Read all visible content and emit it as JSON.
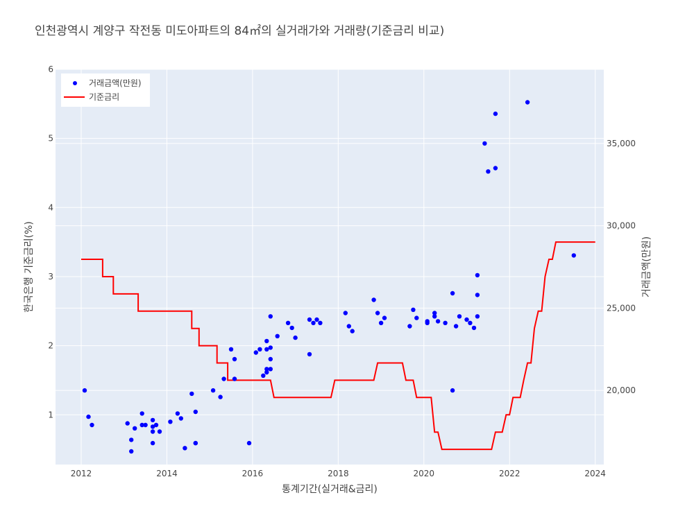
{
  "chart_data": {
    "type": "scatter+line",
    "title": "인천광역시 계양구 작전동 미도아파트의 84㎡의 실거래가와 거래량(기준금리 비교)",
    "xlabel": "통계기간(실거래&금리)",
    "ylabel_left": "한국은행 기준금리(%)",
    "ylabel_right": "거래금액(만원)",
    "xlim": [
      2011.4,
      2024.2
    ],
    "ylim_left": [
      0.28,
      6
    ],
    "ylim_right": [
      15500,
      39500
    ],
    "x_ticks": [
      2012,
      2014,
      2016,
      2018,
      2020,
      2022,
      2024
    ],
    "x_tick_labels": [
      "2012",
      "2014",
      "2016",
      "2018",
      "2020",
      "2022",
      "2024"
    ],
    "y_left_ticks": [
      1,
      2,
      3,
      4,
      5,
      6
    ],
    "y_left_tick_labels": [
      "1",
      "2",
      "3",
      "4",
      "5",
      "6"
    ],
    "y_right_ticks": [
      20000,
      25000,
      30000,
      35000
    ],
    "y_right_tick_labels": [
      "20,000",
      "25,000",
      "30,000",
      "35,000"
    ],
    "grid": true,
    "legend_position": "top-left",
    "series": [
      {
        "name": "거래금액(만원)",
        "kind": "scatter",
        "axis": "right",
        "color": "#0000ff",
        "points": [
          [
            2012.08,
            20000
          ],
          [
            2012.17,
            18400
          ],
          [
            2012.25,
            17900
          ],
          [
            2013.08,
            18000
          ],
          [
            2013.17,
            17000
          ],
          [
            2013.17,
            16300
          ],
          [
            2013.25,
            17700
          ],
          [
            2013.42,
            18600
          ],
          [
            2013.42,
            17900
          ],
          [
            2013.5,
            17900
          ],
          [
            2013.67,
            17800
          ],
          [
            2013.67,
            18200
          ],
          [
            2013.67,
            17500
          ],
          [
            2013.67,
            16800
          ],
          [
            2013.75,
            17900
          ],
          [
            2013.83,
            17500
          ],
          [
            2014.08,
            18100
          ],
          [
            2014.25,
            18600
          ],
          [
            2014.33,
            18300
          ],
          [
            2014.42,
            16500
          ],
          [
            2014.58,
            19800
          ],
          [
            2014.67,
            18700
          ],
          [
            2014.67,
            16800
          ],
          [
            2014.67,
            16800
          ],
          [
            2015.08,
            20000
          ],
          [
            2015.25,
            19600
          ],
          [
            2015.33,
            20700
          ],
          [
            2015.5,
            22500
          ],
          [
            2015.58,
            21900
          ],
          [
            2015.58,
            20700
          ],
          [
            2015.92,
            16800
          ],
          [
            2016.08,
            22300
          ],
          [
            2016.17,
            22500
          ],
          [
            2016.25,
            20900
          ],
          [
            2016.33,
            22500
          ],
          [
            2016.33,
            21100
          ],
          [
            2016.33,
            21300
          ],
          [
            2016.33,
            23000
          ],
          [
            2016.42,
            22600
          ],
          [
            2016.42,
            21900
          ],
          [
            2016.42,
            21300
          ],
          [
            2016.42,
            24500
          ],
          [
            2016.58,
            23300
          ],
          [
            2016.83,
            24100
          ],
          [
            2016.92,
            23800
          ],
          [
            2017.0,
            23200
          ],
          [
            2017.33,
            22200
          ],
          [
            2017.33,
            24300
          ],
          [
            2017.42,
            24100
          ],
          [
            2017.5,
            24300
          ],
          [
            2017.58,
            24100
          ],
          [
            2018.17,
            24700
          ],
          [
            2018.25,
            23900
          ],
          [
            2018.33,
            23600
          ],
          [
            2018.83,
            25500
          ],
          [
            2018.92,
            24700
          ],
          [
            2019.0,
            24100
          ],
          [
            2019.08,
            24400
          ],
          [
            2019.67,
            23900
          ],
          [
            2019.75,
            24900
          ],
          [
            2019.83,
            24400
          ],
          [
            2020.08,
            24100
          ],
          [
            2020.08,
            24200
          ],
          [
            2020.25,
            24500
          ],
          [
            2020.25,
            24700
          ],
          [
            2020.33,
            24200
          ],
          [
            2020.5,
            24100
          ],
          [
            2020.67,
            25900
          ],
          [
            2020.67,
            20000
          ],
          [
            2020.75,
            23900
          ],
          [
            2020.83,
            24500
          ],
          [
            2021.0,
            24300
          ],
          [
            2021.08,
            24100
          ],
          [
            2021.17,
            23800
          ],
          [
            2021.25,
            27000
          ],
          [
            2021.25,
            25800
          ],
          [
            2021.25,
            24500
          ],
          [
            2021.42,
            35000
          ],
          [
            2021.5,
            33300
          ],
          [
            2021.67,
            36800
          ],
          [
            2021.67,
            33500
          ],
          [
            2022.42,
            37500
          ],
          [
            2023.5,
            28200
          ]
        ]
      },
      {
        "name": "기준금리",
        "kind": "step-line",
        "axis": "left",
        "color": "#ff0000",
        "points": [
          [
            2012.0,
            3.25
          ],
          [
            2012.5,
            3.25
          ],
          [
            2012.5,
            3.0
          ],
          [
            2012.75,
            3.0
          ],
          [
            2012.75,
            2.75
          ],
          [
            2013.33,
            2.75
          ],
          [
            2013.33,
            2.5
          ],
          [
            2014.58,
            2.5
          ],
          [
            2014.58,
            2.25
          ],
          [
            2014.75,
            2.25
          ],
          [
            2014.75,
            2.0
          ],
          [
            2015.17,
            2.0
          ],
          [
            2015.17,
            1.75
          ],
          [
            2015.42,
            1.75
          ],
          [
            2015.42,
            1.5
          ],
          [
            2016.42,
            1.5
          ],
          [
            2016.5,
            1.25
          ],
          [
            2017.83,
            1.25
          ],
          [
            2017.92,
            1.5
          ],
          [
            2018.83,
            1.5
          ],
          [
            2018.92,
            1.75
          ],
          [
            2019.5,
            1.75
          ],
          [
            2019.58,
            1.5
          ],
          [
            2019.75,
            1.5
          ],
          [
            2019.83,
            1.25
          ],
          [
            2020.17,
            1.25
          ],
          [
            2020.25,
            0.75
          ],
          [
            2020.33,
            0.75
          ],
          [
            2020.42,
            0.5
          ],
          [
            2021.58,
            0.5
          ],
          [
            2021.67,
            0.75
          ],
          [
            2021.83,
            0.75
          ],
          [
            2021.92,
            1.0
          ],
          [
            2022.0,
            1.0
          ],
          [
            2022.08,
            1.25
          ],
          [
            2022.25,
            1.25
          ],
          [
            2022.33,
            1.5
          ],
          [
            2022.42,
            1.75
          ],
          [
            2022.5,
            1.75
          ],
          [
            2022.58,
            2.25
          ],
          [
            2022.67,
            2.5
          ],
          [
            2022.75,
            2.5
          ],
          [
            2022.83,
            3.0
          ],
          [
            2022.92,
            3.25
          ],
          [
            2023.0,
            3.25
          ],
          [
            2023.08,
            3.5
          ],
          [
            2024.0,
            3.5
          ]
        ]
      }
    ]
  }
}
